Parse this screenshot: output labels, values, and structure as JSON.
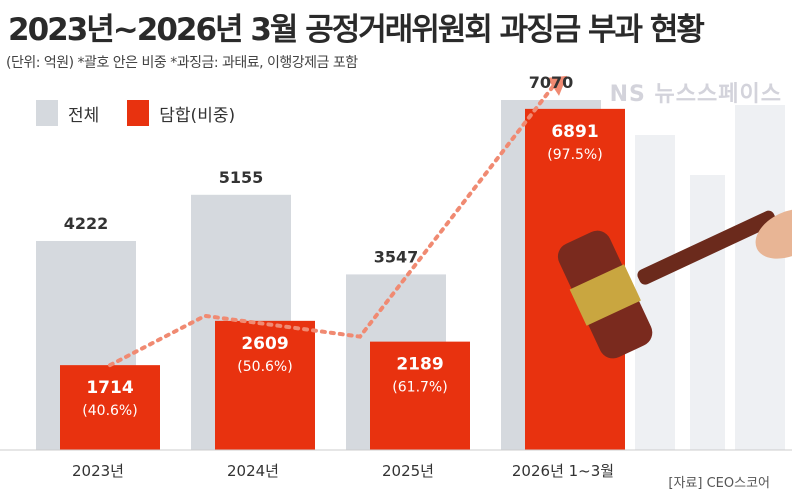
{
  "title": "2023년~2026년 3월 공정거래위원회 과징금 부과 현황",
  "subtitle": "(단위: 억원) *괄호 안은 비중 *과징금: 과태료, 이행강제금 포함",
  "source": "[자료] CEO스코어",
  "watermark": "NS 뉴스스페이스",
  "chart_data": {
    "type": "bar",
    "title": "2023년~2026년 3월 공정거래위원회 과징금 부과 현황",
    "categories": [
      "2023년",
      "2024년",
      "2025년",
      "2026년 1~3월"
    ],
    "series": [
      {
        "name": "전체",
        "color": "#d5d9de",
        "values": [
          4222,
          5155,
          3547,
          7070
        ]
      },
      {
        "name": "담합(비중)",
        "color": "#e8320f",
        "values": [
          1714,
          2609,
          2189,
          6891
        ],
        "shares": [
          "(40.6%)",
          "(50.6%)",
          "(61.7%)",
          "(97.5%)"
        ]
      }
    ],
    "ylabel": "억원",
    "ylim": [
      0,
      7500
    ],
    "grid": false,
    "legend": "top-left"
  }
}
